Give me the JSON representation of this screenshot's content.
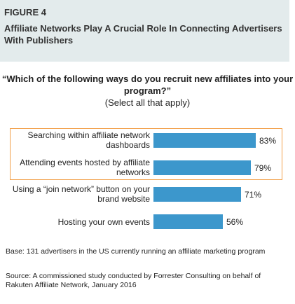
{
  "figure": {
    "label": "FIGURE 4",
    "title": "Affiliate Networks Play A Crucial Role In Connecting Advertisers With Publishers"
  },
  "question": {
    "text": "“Which of the following ways do you recruit new affiliates into your program?”",
    "subtext": "(Select all that apply)"
  },
  "chart_data": {
    "type": "bar",
    "orientation": "horizontal",
    "categories": [
      "Searching within affiliate network dashboards",
      "Attending events hosted by affiliate networks",
      "Using a “join network” button on your brand website",
      "Hosting your own events"
    ],
    "values": [
      83,
      79,
      71,
      56
    ],
    "value_labels": [
      "83%",
      "79%",
      "71%",
      "56%"
    ],
    "highlighted": [
      true,
      true,
      false,
      false
    ],
    "xlim": [
      0,
      100
    ],
    "bar_color": "#3c97cc",
    "highlight_color": "#f2a04a"
  },
  "notes": {
    "base": "Base: 131 advertisers in the US currently running an affiliate marketing program",
    "source": "Source: A commissioned study conducted by Forrester Consulting on behalf of Rakuten Affiliate Network, January 2016"
  }
}
